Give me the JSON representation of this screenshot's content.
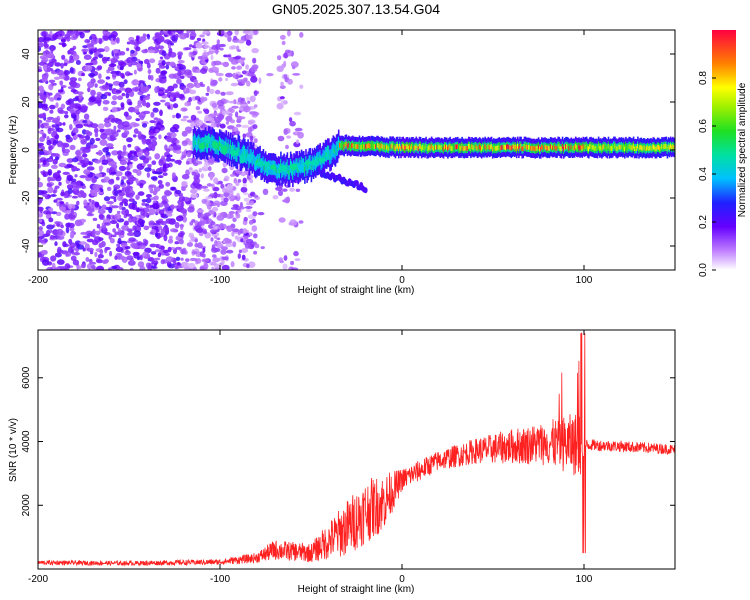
{
  "title": "GN05.2025.307.13.54.G04",
  "colors": {
    "snr_line": "#ff2020",
    "spec_lo": "#7a1cf0",
    "spec_hi": "#ff0033",
    "frame": "#000000"
  },
  "chart_data": [
    {
      "type": "heatmap",
      "name": "spectrogram",
      "xlabel": "Height of straight line (km)",
      "ylabel": "Frequency (Hz)",
      "xlim": [
        -200,
        150
      ],
      "ylim": [
        -50,
        50
      ],
      "xticks": [
        -200,
        -100,
        0,
        100
      ],
      "yticks": [
        -40,
        -20,
        0,
        20,
        40
      ],
      "colorbar": {
        "label": "Normalized spectral amplitude",
        "range": [
          0,
          1
        ],
        "ticks": [
          0.0,
          0.2,
          0.4,
          0.6,
          0.8
        ]
      },
      "features": {
        "noise_region_x": [
          -200,
          -55
        ],
        "dense_noise_x": [
          -200,
          -80
        ],
        "signal_track": [
          {
            "x": -115,
            "f": 3
          },
          {
            "x": -100,
            "f": 2
          },
          {
            "x": -90,
            "f": -1
          },
          {
            "x": -80,
            "f": -5
          },
          {
            "x": -70,
            "f": -8
          },
          {
            "x": -60,
            "f": -8
          },
          {
            "x": -50,
            "f": -6
          },
          {
            "x": -40,
            "f": -2
          },
          {
            "x": -35,
            "f": 2
          },
          {
            "x": 0,
            "f": 1
          },
          {
            "x": 50,
            "f": 1
          },
          {
            "x": 100,
            "f": 1
          },
          {
            "x": 150,
            "f": 1
          }
        ],
        "tail_x": [
          -60,
          -20
        ],
        "tail_f": [
          -5,
          -16
        ]
      }
    },
    {
      "type": "line",
      "name": "snr",
      "xlabel": "Height of straight line (km)",
      "ylabel": "SNR (10 * v/v)",
      "xlim": [
        -200,
        150
      ],
      "ylim": [
        0,
        7500
      ],
      "xticks": [
        -200,
        -100,
        0,
        100
      ],
      "yticks": [
        2000,
        4000,
        6000
      ],
      "profile_x": [
        -200,
        -150,
        -100,
        -80,
        -70,
        -60,
        -50,
        -40,
        -30,
        -20,
        -10,
        0,
        20,
        40,
        60,
        80,
        100,
        101,
        120,
        150
      ],
      "profile_mean": [
        200,
        180,
        220,
        350,
        600,
        550,
        500,
        900,
        1300,
        1800,
        2100,
        2800,
        3400,
        3700,
        3850,
        3950,
        3900,
        3900,
        3850,
        3750
      ],
      "profile_amp": [
        70,
        70,
        90,
        160,
        320,
        300,
        300,
        600,
        900,
        1000,
        900,
        350,
        320,
        400,
        550,
        700,
        1100,
        180,
        180,
        160
      ]
    }
  ]
}
